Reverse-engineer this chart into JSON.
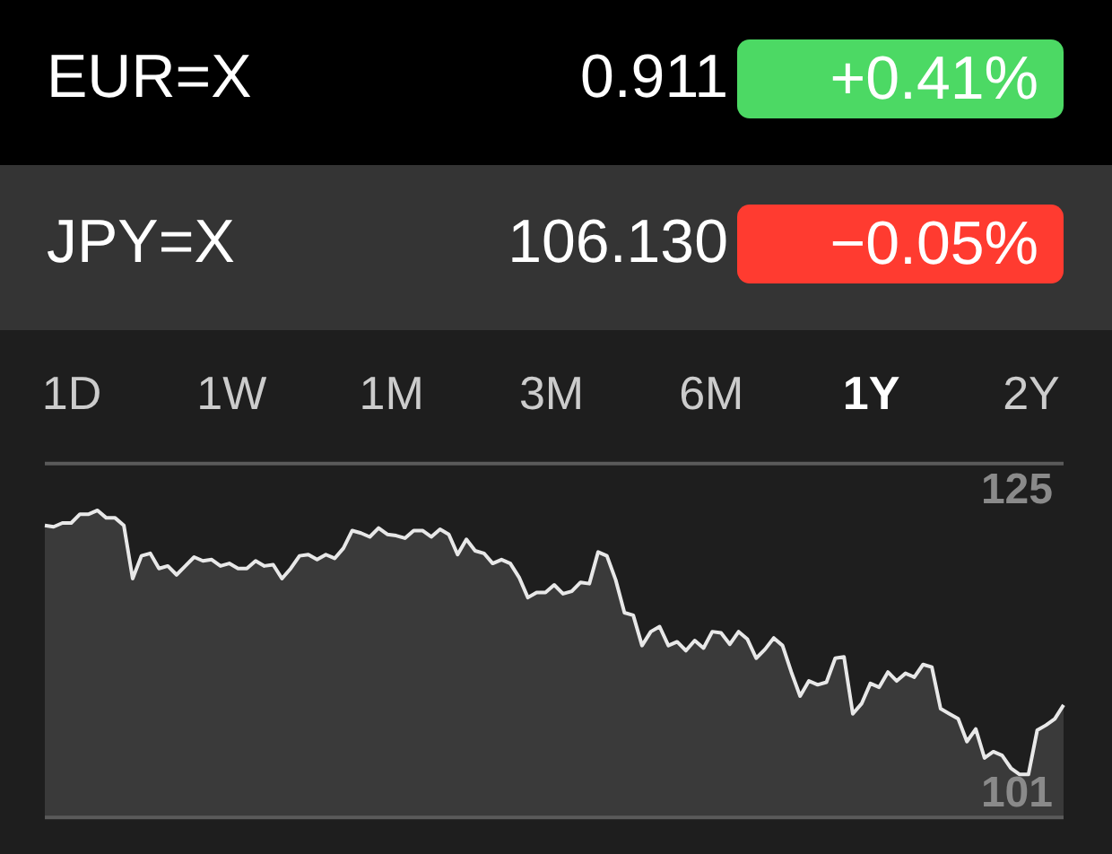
{
  "chart_data": {
    "type": "area",
    "annotations": [
      "EUR=X",
      "0.911",
      "+0.41%",
      "JPY=X",
      "106.130",
      "−0.05%",
      "1D",
      "1W",
      "1M",
      "3M",
      "6M",
      "1Y",
      "2Y"
    ],
    "categories": [
      null,
      null,
      null,
      null,
      null,
      null,
      null,
      null,
      null,
      null,
      null,
      null,
      null,
      null,
      null,
      null,
      null,
      null,
      null,
      null,
      null,
      null,
      null,
      null,
      null,
      null,
      null,
      null,
      null,
      null,
      null,
      null,
      null,
      null,
      null,
      null,
      null,
      null,
      null,
      null,
      null,
      null,
      null,
      null,
      null,
      null,
      null,
      null,
      null,
      null,
      null,
      null,
      null,
      null,
      null,
      null,
      null,
      null,
      null,
      null,
      null,
      null,
      null,
      null,
      null,
      null,
      null,
      null,
      null,
      null,
      null,
      null,
      null,
      null,
      null,
      null,
      null,
      null,
      null,
      null,
      null,
      null,
      null,
      null,
      null,
      null,
      null,
      null,
      null,
      null,
      null,
      null,
      null,
      null,
      null,
      null,
      null,
      null,
      null,
      null,
      null,
      null,
      null,
      null,
      null,
      null,
      null,
      null,
      null,
      null,
      null,
      null,
      null,
      null,
      null,
      null,
      null
    ],
    "series": [
      {
        "color": "#e8e8e8",
        "values": [
          122.3,
          122.2,
          122.5,
          122.5,
          123.2,
          123.2,
          123.5,
          122.9,
          122.9,
          122.3,
          118.1,
          119.9,
          120.1,
          118.9,
          119.1,
          118.4,
          119.1,
          119.8,
          119.5,
          119.6,
          119.1,
          119.3,
          118.9,
          118.9,
          119.5,
          119.1,
          119.2,
          118.1,
          118.9,
          119.9,
          120.0,
          119.6,
          120.0,
          119.7,
          120.5,
          121.9,
          121.7,
          121.4,
          122.1,
          121.6,
          121.5,
          121.3,
          121.9,
          121.9,
          121.4,
          122.0,
          121.6,
          120.0,
          121.2,
          120.3,
          120.1,
          119.3,
          119.6,
          119.3,
          118.2,
          116.6,
          117.0,
          117.0,
          117.6,
          116.9,
          117.1,
          117.8,
          117.7,
          120.2,
          119.9,
          118.0,
          115.4,
          115.2,
          112.8,
          113.9,
          114.3,
          112.8,
          113.1,
          112.4,
          113.2,
          112.6,
          113.9,
          113.8,
          112.9,
          113.9,
          113.3,
          111.8,
          112.5,
          113.4,
          112.8,
          110.7,
          108.8,
          110.0,
          109.7,
          109.9,
          111.8,
          111.9,
          107.4,
          108.2,
          109.8,
          109.5,
          110.7,
          110.0,
          110.6,
          110.3,
          111.3,
          111.1,
          107.8,
          107.4,
          107.0,
          105.2,
          106.2,
          103.9,
          104.4,
          104.1,
          103.1,
          102.6,
          102.6,
          106.1,
          106.5,
          107.0,
          108.1
        ]
      }
    ],
    "ylim": [
      99.2,
      127.2
    ],
    "yticks": [
      125,
      101
    ],
    "grid": false,
    "legend": false
  }
}
